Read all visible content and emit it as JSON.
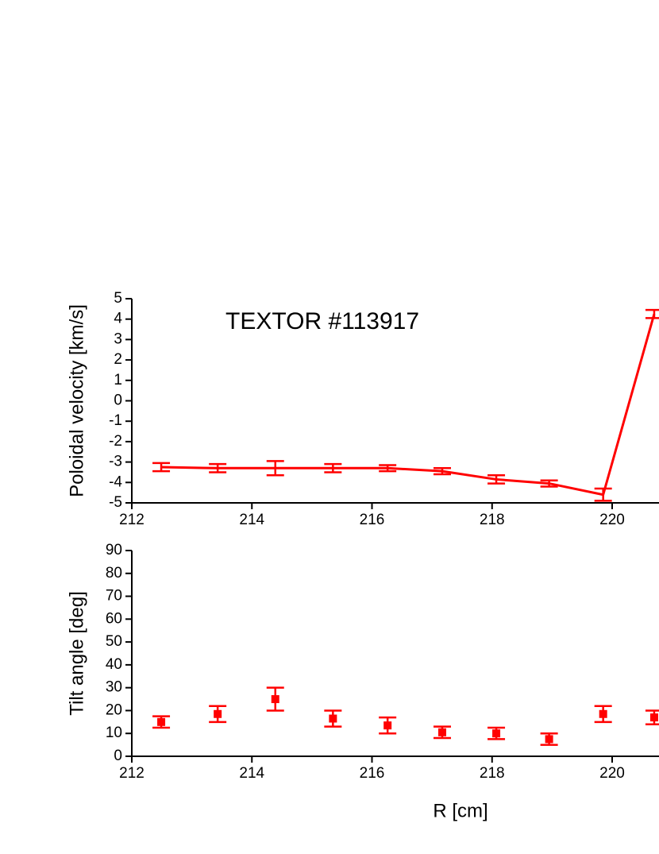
{
  "chart_data": [
    {
      "type": "line",
      "annotation": "TEXTOR #113917",
      "y_label": "Poloidal velocity [km/s]",
      "color": "#ff0000",
      "x": [
        212.49,
        213.43,
        214.39,
        215.35,
        216.26,
        217.17,
        218.07,
        218.95,
        219.85,
        220.7
      ],
      "values": [
        -3.25,
        -3.3,
        -3.3,
        -3.3,
        -3.3,
        -3.45,
        -3.85,
        -4.05,
        -4.6,
        4.25
      ],
      "errors": [
        0.2,
        0.2,
        0.35,
        0.2,
        0.15,
        0.15,
        0.2,
        0.15,
        0.3,
        0.2
      ],
      "xlim": [
        212,
        220.78
      ],
      "xticks": [
        212,
        214,
        216,
        218,
        220
      ],
      "ylim": [
        -5,
        5
      ],
      "yticks": [
        -5,
        -4,
        -3,
        -2,
        -1,
        0,
        1,
        2,
        3,
        4,
        5
      ]
    },
    {
      "type": "scatter",
      "x_label": "R [cm]",
      "y_label": "Tilt angle [deg]",
      "color": "#ff0000",
      "x": [
        212.49,
        213.43,
        214.39,
        215.35,
        216.26,
        217.17,
        218.07,
        218.95,
        219.85,
        220.7
      ],
      "values": [
        15,
        18.5,
        25,
        16.5,
        13.5,
        10.5,
        10,
        7.5,
        18.5,
        17
      ],
      "errors": [
        2.5,
        3.5,
        5,
        3.5,
        3.5,
        2.5,
        2.5,
        2.5,
        3.5,
        3
      ],
      "xlim": [
        212,
        220.78
      ],
      "xticks": [
        212,
        214,
        216,
        218,
        220
      ],
      "ylim": [
        0,
        90
      ],
      "yticks": [
        0,
        10,
        20,
        30,
        40,
        50,
        60,
        70,
        80,
        90
      ]
    }
  ]
}
